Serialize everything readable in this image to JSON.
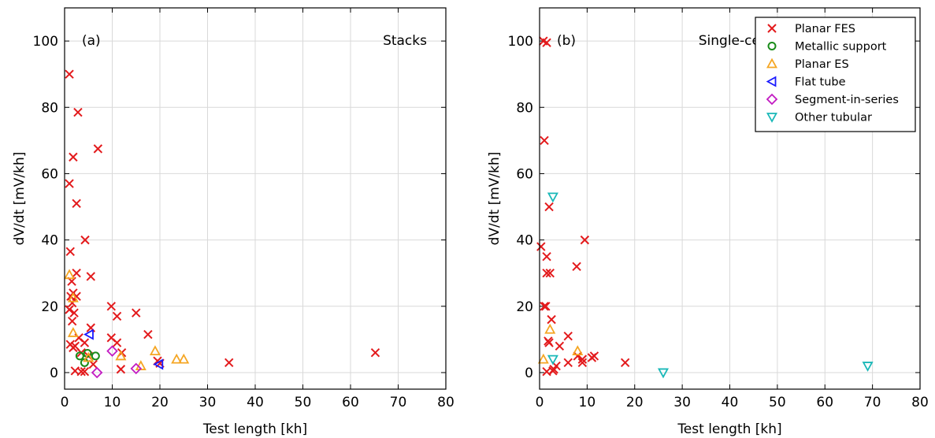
{
  "chart_data": [
    {
      "type": "scatter",
      "panel_label": "(a)",
      "title": "Stacks",
      "xlabel": "Test length [kh]",
      "ylabel": "dV/dt [mV/kh]",
      "xlim": [
        0,
        80
      ],
      "ylim": [
        -5,
        110
      ],
      "xticks": [
        0,
        10,
        20,
        30,
        40,
        50,
        60,
        70,
        80
      ],
      "yticks": [
        0,
        20,
        40,
        60,
        80,
        100
      ],
      "grid": true,
      "series": [
        {
          "key": "planar_fes",
          "points": [
            [
              1.0,
              90
            ],
            [
              2.8,
              78.5
            ],
            [
              7.0,
              67.5
            ],
            [
              1.8,
              65
            ],
            [
              1.0,
              57
            ],
            [
              2.5,
              51
            ],
            [
              4.3,
              40
            ],
            [
              1.2,
              36.5
            ],
            [
              5.5,
              29
            ],
            [
              2.5,
              30
            ],
            [
              1.5,
              27.5
            ],
            [
              1.8,
              24
            ],
            [
              2.5,
              23
            ],
            [
              1.3,
              23
            ],
            [
              1.6,
              21
            ],
            [
              2.0,
              18
            ],
            [
              1.6,
              15.5
            ],
            [
              5.5,
              13.5
            ],
            [
              1.0,
              19
            ],
            [
              3.0,
              10.5
            ],
            [
              4.2,
              9
            ],
            [
              2.2,
              8
            ],
            [
              1.2,
              8.5
            ],
            [
              1.8,
              7.5
            ],
            [
              3.5,
              6
            ],
            [
              5.0,
              5
            ],
            [
              6.0,
              2.5
            ],
            [
              3.5,
              0.3
            ],
            [
              4.2,
              0.3
            ],
            [
              2.2,
              0.5
            ],
            [
              9.8,
              20
            ],
            [
              11.0,
              17
            ],
            [
              15.0,
              18
            ],
            [
              17.5,
              11.5
            ],
            [
              9.8,
              10.5
            ],
            [
              11.0,
              9
            ],
            [
              12.0,
              6
            ],
            [
              11.8,
              1
            ],
            [
              19.5,
              3.5
            ],
            [
              20.0,
              2.8
            ],
            [
              34.5,
              3
            ],
            [
              65.2,
              6
            ]
          ]
        },
        {
          "key": "metallic",
          "points": [
            [
              3.2,
              5
            ],
            [
              4.2,
              3
            ],
            [
              4.8,
              5.8
            ],
            [
              6.5,
              5
            ]
          ]
        },
        {
          "key": "planar_es",
          "points": [
            [
              1.0,
              29.5
            ],
            [
              1.8,
              22.5
            ],
            [
              1.8,
              12
            ],
            [
              5.0,
              4.5
            ],
            [
              11.8,
              5
            ],
            [
              16.0,
              2
            ],
            [
              19.0,
              6.5
            ],
            [
              23.5,
              4
            ],
            [
              25.0,
              4
            ]
          ]
        },
        {
          "key": "flat_tube",
          "points": [
            [
              5.2,
              11.5
            ],
            [
              19.8,
              2.5
            ]
          ]
        },
        {
          "key": "segment",
          "points": [
            [
              10.0,
              6.5
            ],
            [
              6.8,
              0
            ],
            [
              15.0,
              1.2
            ]
          ]
        },
        {
          "key": "other_tubular",
          "points": []
        }
      ]
    },
    {
      "type": "scatter",
      "panel_label": "(b)",
      "title": "Single-cells",
      "xlabel": "Test length [kh]",
      "ylabel": "dV/dt [mV/kh]",
      "xlim": [
        0,
        80
      ],
      "ylim": [
        -5,
        110
      ],
      "xticks": [
        0,
        10,
        20,
        30,
        40,
        50,
        60,
        70,
        80
      ],
      "yticks": [
        0,
        20,
        40,
        60,
        80,
        100
      ],
      "grid": true,
      "legend_position": "top-right",
      "series": [
        {
          "key": "planar_fes",
          "points": [
            [
              0.8,
              100
            ],
            [
              1.5,
              99.5
            ],
            [
              1.0,
              70
            ],
            [
              2.0,
              50
            ],
            [
              9.5,
              40
            ],
            [
              0.3,
              38
            ],
            [
              1.5,
              35
            ],
            [
              1.5,
              30
            ],
            [
              2.2,
              30
            ],
            [
              7.8,
              32
            ],
            [
              1.0,
              20
            ],
            [
              1.3,
              20
            ],
            [
              2.5,
              16
            ],
            [
              1.8,
              9.5
            ],
            [
              2.0,
              9
            ],
            [
              6.0,
              11
            ],
            [
              4.2,
              8
            ],
            [
              8.0,
              5
            ],
            [
              9.0,
              4
            ],
            [
              11.5,
              5
            ],
            [
              11.0,
              4.5
            ],
            [
              6.0,
              3
            ],
            [
              9.0,
              3
            ],
            [
              3.5,
              2
            ],
            [
              2.8,
              0.5
            ],
            [
              3.0,
              1
            ],
            [
              1.5,
              0.3
            ],
            [
              18.0,
              3
            ]
          ]
        },
        {
          "key": "metallic",
          "points": []
        },
        {
          "key": "planar_es",
          "points": [
            [
              0.8,
              4
            ],
            [
              2.2,
              13
            ],
            [
              8.0,
              6.5
            ]
          ]
        },
        {
          "key": "flat_tube",
          "points": []
        },
        {
          "key": "segment",
          "points": []
        },
        {
          "key": "other_tubular",
          "points": [
            [
              2.8,
              53
            ],
            [
              2.8,
              4
            ],
            [
              26.0,
              0
            ],
            [
              69.0,
              2
            ]
          ]
        }
      ]
    }
  ],
  "legend": [
    {
      "key": "planar_fes",
      "label": "Planar FES",
      "marker": "x",
      "color": "#e31a1c"
    },
    {
      "key": "metallic",
      "label": "Metallic support",
      "marker": "circle",
      "color": "#1a8c1a"
    },
    {
      "key": "planar_es",
      "label": "Planar ES",
      "marker": "triangle-up",
      "color": "#f5a623"
    },
    {
      "key": "flat_tube",
      "label": "Flat tube",
      "marker": "triangle-left",
      "color": "#1a1aff"
    },
    {
      "key": "segment",
      "label": "Segment-in-series",
      "marker": "diamond",
      "color": "#c21ac2"
    },
    {
      "key": "other_tubular",
      "label": "Other tubular",
      "marker": "triangle-down",
      "color": "#1ab8b8"
    }
  ]
}
